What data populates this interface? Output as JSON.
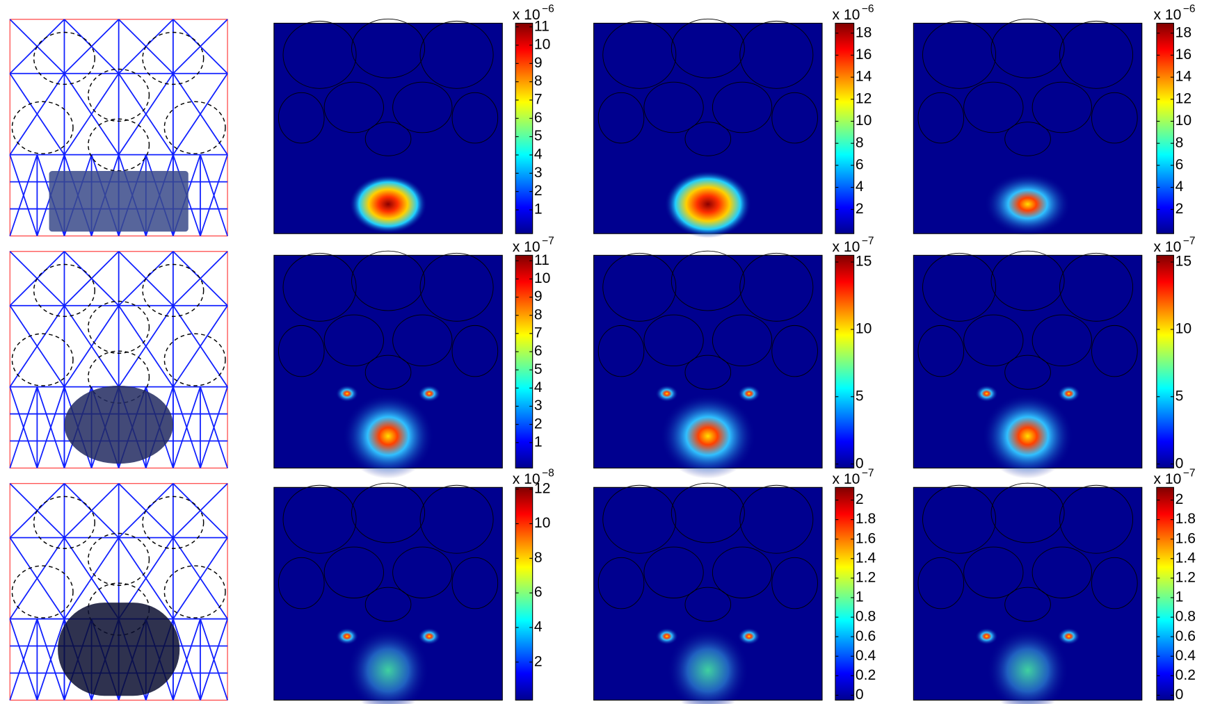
{
  "figure": {
    "rows": [
      {
        "colorbars": [
          {
            "exponent_base": "x 10",
            "exponent_power": "−6",
            "ylim": [
              -0.3,
              11.2
            ],
            "yticks": [
              1,
              2,
              3,
              4,
              5,
              6,
              7,
              8,
              9,
              10,
              11
            ]
          },
          {
            "exponent_base": "x 10",
            "exponent_power": "−6",
            "ylim": [
              -0.2,
              18.9
            ],
            "yticks": [
              2,
              4,
              6,
              8,
              10,
              12,
              14,
              16,
              18
            ]
          },
          {
            "exponent_base": "x 10",
            "exponent_power": "−6",
            "ylim": [
              -0.2,
              18.9
            ],
            "yticks": [
              2,
              4,
              6,
              8,
              10,
              12,
              14,
              16,
              18
            ]
          }
        ]
      },
      {
        "colorbars": [
          {
            "exponent_base": "x 10",
            "exponent_power": "−7",
            "ylim": [
              -0.4,
              11.3
            ],
            "yticks": [
              1,
              2,
              3,
              4,
              5,
              6,
              7,
              8,
              9,
              10,
              11
            ]
          },
          {
            "exponent_base": "x 10",
            "exponent_power": "−7",
            "ylim": [
              -0.3,
              15.5
            ],
            "yticks": [
              0,
              5,
              10,
              15
            ]
          },
          {
            "exponent_base": "x 10",
            "exponent_power": "−7",
            "ylim": [
              -0.3,
              15.5
            ],
            "yticks": [
              0,
              5,
              10,
              15
            ]
          }
        ]
      },
      {
        "colorbars": [
          {
            "exponent_base": "x 10",
            "exponent_power": "−8",
            "ylim": [
              -0.2,
              12.1
            ],
            "yticks": [
              2,
              4,
              6,
              8,
              10,
              12
            ]
          },
          {
            "exponent_base": "x 10",
            "exponent_power": "−7",
            "ylim": [
              -0.05,
              2.13
            ],
            "yticks": [
              0,
              0.2,
              0.4,
              0.6,
              0.8,
              1,
              1.2,
              1.4,
              1.6,
              1.8,
              2
            ]
          },
          {
            "exponent_base": "x 10",
            "exponent_power": "−7",
            "ylim": [
              -0.05,
              2.13
            ],
            "yticks": [
              0,
              0.2,
              0.4,
              0.6,
              0.8,
              1,
              1.2,
              1.4,
              1.6,
              1.8,
              2
            ]
          }
        ]
      }
    ]
  }
}
